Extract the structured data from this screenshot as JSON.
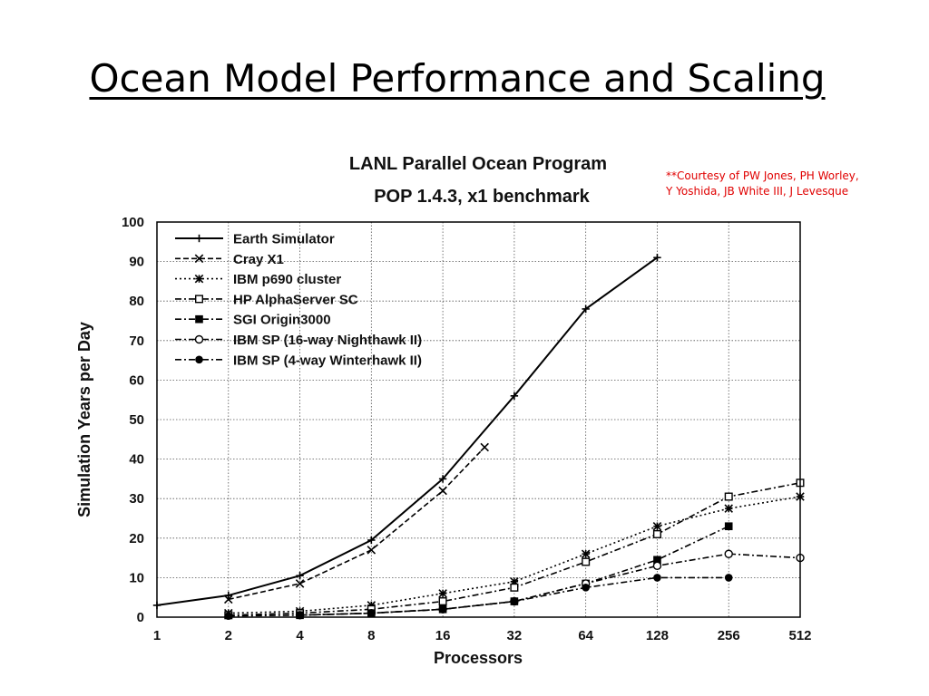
{
  "slide": {
    "title": "Ocean Model Performance and Scaling",
    "credit_lines": [
      "**Courtesy of PW Jones, PH Worley,",
      "Y Yoshida, JB White III, J Levesque"
    ]
  },
  "chart_data": {
    "type": "line",
    "title": "LANL Parallel Ocean Program",
    "subtitle": "POP 1.4.3, x1 benchmark",
    "xlabel": "Processors",
    "ylabel": "Simulation Years per Day",
    "x_scale": "log2",
    "x_ticks": [
      1,
      2,
      4,
      8,
      16,
      32,
      64,
      128,
      256,
      512
    ],
    "ylim": [
      0,
      100
    ],
    "y_ticks": [
      0,
      10,
      20,
      30,
      40,
      50,
      60,
      70,
      80,
      90,
      100
    ],
    "grid": true,
    "legend_position": "top-left",
    "series": [
      {
        "name": "Earth Simulator",
        "marker": "plus",
        "dash": "solid",
        "x": [
          1,
          2,
          4,
          8,
          16,
          32,
          64,
          128
        ],
        "y": [
          3,
          5.5,
          10.5,
          19.5,
          35,
          56,
          78,
          91
        ]
      },
      {
        "name": "Cray X1",
        "marker": "x",
        "dash": "dash",
        "x": [
          2,
          4,
          8,
          16,
          24
        ],
        "y": [
          4.5,
          8.5,
          17,
          32,
          43
        ]
      },
      {
        "name": "IBM p690 cluster",
        "marker": "star",
        "dash": "dot",
        "x": [
          2,
          4,
          8,
          16,
          32,
          64,
          128,
          256,
          512
        ],
        "y": [
          1,
          1.5,
          3,
          6,
          9,
          16,
          23,
          27.5,
          30.5
        ]
      },
      {
        "name": "HP AlphaServer SC",
        "marker": "square-open",
        "dash": "dashdot",
        "x": [
          2,
          4,
          8,
          16,
          32,
          64,
          128,
          256,
          512
        ],
        "y": [
          0.5,
          1,
          2,
          4,
          7.5,
          14,
          21,
          30.5,
          34
        ]
      },
      {
        "name": "SGI Origin3000",
        "marker": "square-filled",
        "dash": "dashdot",
        "x": [
          4,
          8,
          16,
          32,
          64,
          128,
          256
        ],
        "y": [
          0.5,
          1,
          2,
          4,
          8.5,
          14.5,
          23
        ]
      },
      {
        "name": "IBM SP (16-way Nighthawk II)",
        "marker": "circle-open",
        "dash": "dashdot",
        "x": [
          4,
          8,
          16,
          32,
          64,
          128,
          256,
          512
        ],
        "y": [
          0.5,
          1,
          2,
          4,
          8.5,
          13,
          16,
          15
        ]
      },
      {
        "name": "IBM SP (4-way Winterhawk II)",
        "marker": "circle-filled",
        "dash": "dashdot",
        "x": [
          2,
          4,
          8,
          16,
          32,
          64,
          128,
          256
        ],
        "y": [
          0.3,
          0.5,
          1,
          2,
          4,
          7.5,
          10,
          10
        ]
      }
    ]
  }
}
